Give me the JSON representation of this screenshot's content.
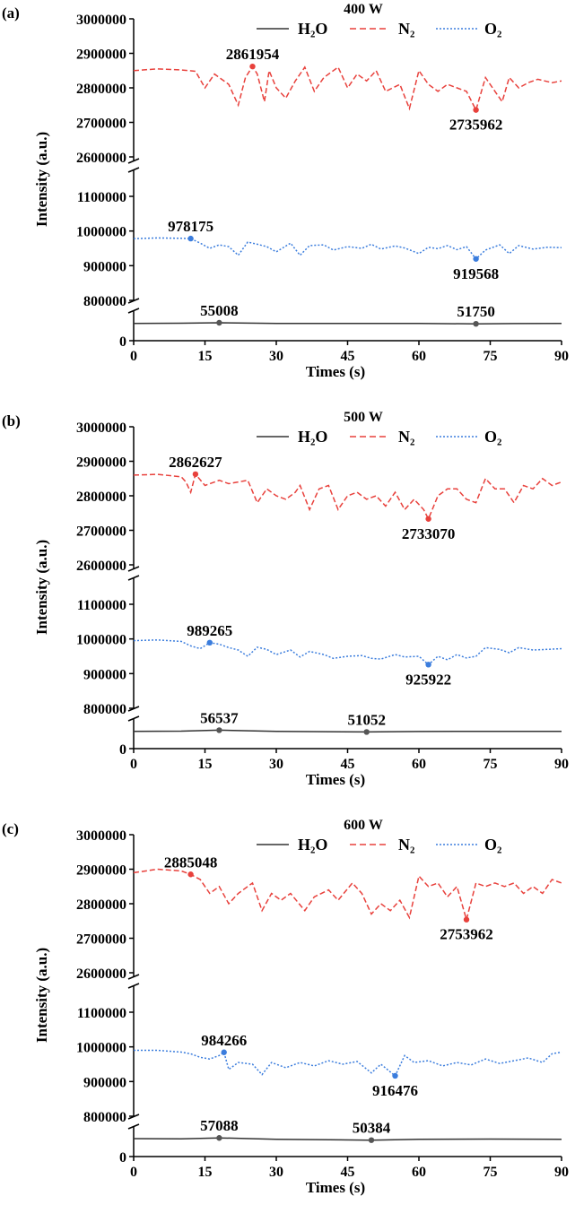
{
  "chart_data": [
    {
      "type": "line",
      "panel_label": "(a)",
      "title": "400 W",
      "xlabel": "Times (s)",
      "ylabel": "Intensity (a.u.)",
      "xlim": [
        0,
        90
      ],
      "x_ticks": [
        "0",
        "15",
        "30",
        "45",
        "60",
        "75",
        "90"
      ],
      "y_ticks_top": [
        "2600000",
        "2700000",
        "2800000",
        "2900000",
        "3000000"
      ],
      "y_ticks_middle": [
        "800000",
        "900000",
        "1000000",
        "1100000"
      ],
      "y_ticks_bottom": [
        "0"
      ],
      "legend": [
        {
          "label": "H₂O",
          "style": "solid",
          "color": "#333333"
        },
        {
          "label": "N₂",
          "style": "dashed",
          "color": "#e8413c"
        },
        {
          "label": "O₂",
          "style": "dotted",
          "color": "#3b7ddd"
        }
      ],
      "series": [
        {
          "name": "H₂O",
          "x": [
            0,
            10,
            18,
            30,
            45,
            60,
            72,
            80,
            90
          ],
          "values": [
            53000,
            53500,
            55008,
            53000,
            53200,
            52800,
            51750,
            52500,
            53000
          ]
        },
        {
          "name": "N₂",
          "x": [
            0,
            5,
            10,
            13,
            15,
            17,
            20,
            22,
            23.5,
            25,
            26,
            27.5,
            28.5,
            30,
            32,
            34,
            36,
            38,
            40,
            42,
            43,
            45,
            47,
            49,
            51,
            53,
            56,
            58,
            60,
            62,
            64,
            66,
            68,
            70,
            72,
            74,
            76,
            77.5,
            79,
            81,
            83,
            85,
            88,
            90
          ],
          "values": [
            2850000,
            2855000,
            2852000,
            2848000,
            2800000,
            2840000,
            2810000,
            2750000,
            2830000,
            2861954,
            2840000,
            2760000,
            2850000,
            2800000,
            2770000,
            2820000,
            2860000,
            2790000,
            2830000,
            2850000,
            2860000,
            2800000,
            2840000,
            2820000,
            2850000,
            2790000,
            2810000,
            2740000,
            2850000,
            2810000,
            2790000,
            2810000,
            2800000,
            2790000,
            2735962,
            2830000,
            2790000,
            2760000,
            2830000,
            2800000,
            2815000,
            2825000,
            2815000,
            2820000
          ]
        },
        {
          "name": "O₂",
          "x": [
            0,
            5,
            10,
            12,
            14,
            16,
            18,
            20,
            22,
            24,
            26,
            28,
            30,
            33,
            35,
            37,
            40,
            42,
            45,
            48,
            50,
            52,
            55,
            57,
            60,
            62,
            64,
            66,
            68,
            70,
            72,
            74,
            77,
            79,
            81,
            84,
            87,
            90
          ],
          "values": [
            978000,
            980000,
            979000,
            978175,
            965000,
            950000,
            960000,
            955000,
            930000,
            968000,
            962000,
            955000,
            940000,
            965000,
            930000,
            958000,
            960000,
            945000,
            955000,
            950000,
            962000,
            948000,
            957000,
            951000,
            935000,
            953000,
            949000,
            958000,
            946000,
            955000,
            919568,
            945000,
            960000,
            935000,
            958000,
            948000,
            953000,
            952000
          ]
        }
      ],
      "annotations": [
        {
          "text": "2861954",
          "x": 25,
          "y": 2861954,
          "series": "N₂"
        },
        {
          "text": "2735962",
          "x": 72,
          "y": 2735962,
          "series": "N₂"
        },
        {
          "text": "978175",
          "x": 12,
          "y": 978175,
          "series": "O₂"
        },
        {
          "text": "919568",
          "x": 72,
          "y": 919568,
          "series": "O₂"
        },
        {
          "text": "55008",
          "x": 18,
          "y": 55008,
          "series": "H₂O"
        },
        {
          "text": "51750",
          "x": 72,
          "y": 51750,
          "series": "H₂O"
        }
      ]
    },
    {
      "type": "line",
      "panel_label": "(b)",
      "title": "500 W",
      "xlabel": "Times (s)",
      "ylabel": "Intensity (a.u.)",
      "xlim": [
        0,
        90
      ],
      "x_ticks": [
        "0",
        "15",
        "30",
        "45",
        "60",
        "75",
        "90"
      ],
      "y_ticks_top": [
        "2600000",
        "2700000",
        "2800000",
        "2900000",
        "3000000"
      ],
      "y_ticks_middle": [
        "800000",
        "900000",
        "1000000",
        "1100000"
      ],
      "y_ticks_bottom": [
        "0"
      ],
      "legend": [
        {
          "label": "H₂O",
          "style": "solid",
          "color": "#333333"
        },
        {
          "label": "N₂",
          "style": "dashed",
          "color": "#e8413c"
        },
        {
          "label": "O₂",
          "style": "dotted",
          "color": "#3b7ddd"
        }
      ],
      "series": [
        {
          "name": "H₂O",
          "x": [
            0,
            10,
            18,
            30,
            49,
            60,
            75,
            90
          ],
          "values": [
            53000,
            53500,
            56537,
            53000,
            51052,
            52500,
            53000,
            53000
          ]
        },
        {
          "name": "N₂",
          "x": [
            0,
            5,
            10,
            11,
            12,
            13,
            15,
            18,
            20,
            22,
            24,
            26,
            28,
            30,
            32,
            34,
            35,
            37,
            39,
            41,
            43,
            45,
            47,
            49,
            51,
            53,
            55,
            57,
            59,
            61,
            62,
            64,
            66,
            68,
            70,
            72,
            74,
            76,
            78,
            80,
            82,
            84,
            86,
            88,
            90
          ],
          "values": [
            2860000,
            2862000,
            2855000,
            2840000,
            2810000,
            2862627,
            2830000,
            2845000,
            2835000,
            2840000,
            2845000,
            2780000,
            2820000,
            2800000,
            2790000,
            2810000,
            2830000,
            2760000,
            2820000,
            2830000,
            2760000,
            2800000,
            2810000,
            2790000,
            2800000,
            2770000,
            2810000,
            2760000,
            2790000,
            2760000,
            2733070,
            2800000,
            2820000,
            2820000,
            2790000,
            2780000,
            2850000,
            2820000,
            2820000,
            2780000,
            2830000,
            2820000,
            2850000,
            2830000,
            2840000
          ]
        },
        {
          "name": "O₂",
          "x": [
            0,
            5,
            10,
            12,
            14,
            16,
            18,
            20,
            22,
            24,
            26,
            28,
            30,
            33,
            35,
            37,
            40,
            42,
            45,
            48,
            50,
            52,
            55,
            57,
            60,
            62,
            64,
            66,
            68,
            70,
            72,
            74,
            77,
            79,
            81,
            84,
            87,
            90
          ],
          "values": [
            995000,
            997000,
            993000,
            980000,
            972000,
            989265,
            985000,
            975000,
            968000,
            950000,
            976000,
            970000,
            955000,
            968000,
            948000,
            964000,
            955000,
            944000,
            950000,
            952000,
            944000,
            942000,
            955000,
            948000,
            950000,
            925922,
            950000,
            940000,
            955000,
            945000,
            950000,
            975000,
            970000,
            960000,
            975000,
            968000,
            970000,
            972000
          ]
        }
      ],
      "annotations": [
        {
          "text": "2862627",
          "x": 13,
          "y": 2862627,
          "series": "N₂"
        },
        {
          "text": "2733070",
          "x": 62,
          "y": 2733070,
          "series": "N₂"
        },
        {
          "text": "989265",
          "x": 16,
          "y": 989265,
          "series": "O₂"
        },
        {
          "text": "925922",
          "x": 62,
          "y": 925922,
          "series": "O₂"
        },
        {
          "text": "56537",
          "x": 18,
          "y": 56537,
          "series": "H₂O"
        },
        {
          "text": "51052",
          "x": 49,
          "y": 51052,
          "series": "H₂O"
        }
      ]
    },
    {
      "type": "line",
      "panel_label": "(c)",
      "title": "600 W",
      "xlabel": "Times (s)",
      "ylabel": "Intensity (a.u.)",
      "xlim": [
        0,
        90
      ],
      "x_ticks": [
        "0",
        "15",
        "30",
        "45",
        "60",
        "75",
        "90"
      ],
      "y_ticks_top": [
        "2600000",
        "2700000",
        "2800000",
        "2900000",
        "3000000"
      ],
      "y_ticks_middle": [
        "800000",
        "900000",
        "1000000",
        "1100000"
      ],
      "y_ticks_bottom": [
        "0"
      ],
      "legend": [
        {
          "label": "H₂O",
          "style": "solid",
          "color": "#333333"
        },
        {
          "label": "N₂",
          "style": "dashed",
          "color": "#e8413c"
        },
        {
          "label": "O₂",
          "style": "dotted",
          "color": "#3b7ddd"
        }
      ],
      "series": [
        {
          "name": "H₂O",
          "x": [
            0,
            10,
            18,
            30,
            50,
            60,
            75,
            90
          ],
          "values": [
            55000,
            54500,
            57088,
            53000,
            50384,
            53000,
            53500,
            53000
          ]
        },
        {
          "name": "N₂",
          "x": [
            0,
            5,
            10,
            12,
            14,
            16,
            18,
            20,
            22,
            25,
            27,
            29,
            31,
            33,
            36,
            38,
            41,
            43,
            46,
            48,
            50,
            52,
            54,
            56,
            58,
            60,
            62,
            64,
            66,
            68,
            70,
            72,
            74,
            76,
            78,
            80,
            82,
            84,
            86,
            88,
            90
          ],
          "values": [
            2890000,
            2900000,
            2895000,
            2885048,
            2870000,
            2830000,
            2850000,
            2800000,
            2830000,
            2860000,
            2780000,
            2830000,
            2810000,
            2830000,
            2780000,
            2820000,
            2840000,
            2810000,
            2860000,
            2830000,
            2770000,
            2800000,
            2780000,
            2810000,
            2760000,
            2880000,
            2850000,
            2860000,
            2820000,
            2850000,
            2753962,
            2860000,
            2850000,
            2860000,
            2850000,
            2860000,
            2830000,
            2850000,
            2830000,
            2870000,
            2860000
          ]
        },
        {
          "name": "O₂",
          "x": [
            0,
            5,
            10,
            12,
            14,
            16,
            18,
            19,
            20,
            22,
            25,
            27,
            29,
            32,
            35,
            38,
            41,
            44,
            47,
            50,
            52,
            55,
            57,
            59,
            62,
            65,
            68,
            71,
            74,
            77,
            80,
            83,
            86,
            88,
            90
          ],
          "values": [
            990000,
            990000,
            985000,
            980000,
            970000,
            965000,
            975000,
            984266,
            935000,
            955000,
            950000,
            920000,
            955000,
            940000,
            955000,
            945000,
            960000,
            950000,
            958000,
            925000,
            950000,
            916476,
            975000,
            955000,
            960000,
            945000,
            955000,
            948000,
            965000,
            952000,
            960000,
            968000,
            955000,
            980000,
            985000
          ]
        }
      ],
      "annotations": [
        {
          "text": "2885048",
          "x": 12,
          "y": 2885048,
          "series": "N₂"
        },
        {
          "text": "2753962",
          "x": 70,
          "y": 2753962,
          "series": "N₂"
        },
        {
          "text": "984266",
          "x": 19,
          "y": 984266,
          "series": "O₂"
        },
        {
          "text": "916476",
          "x": 55,
          "y": 916476,
          "series": "O₂"
        },
        {
          "text": "57088",
          "x": 18,
          "y": 57088,
          "series": "H₂O"
        },
        {
          "text": "50384",
          "x": 50,
          "y": 50384,
          "series": "H₂O"
        }
      ]
    }
  ]
}
